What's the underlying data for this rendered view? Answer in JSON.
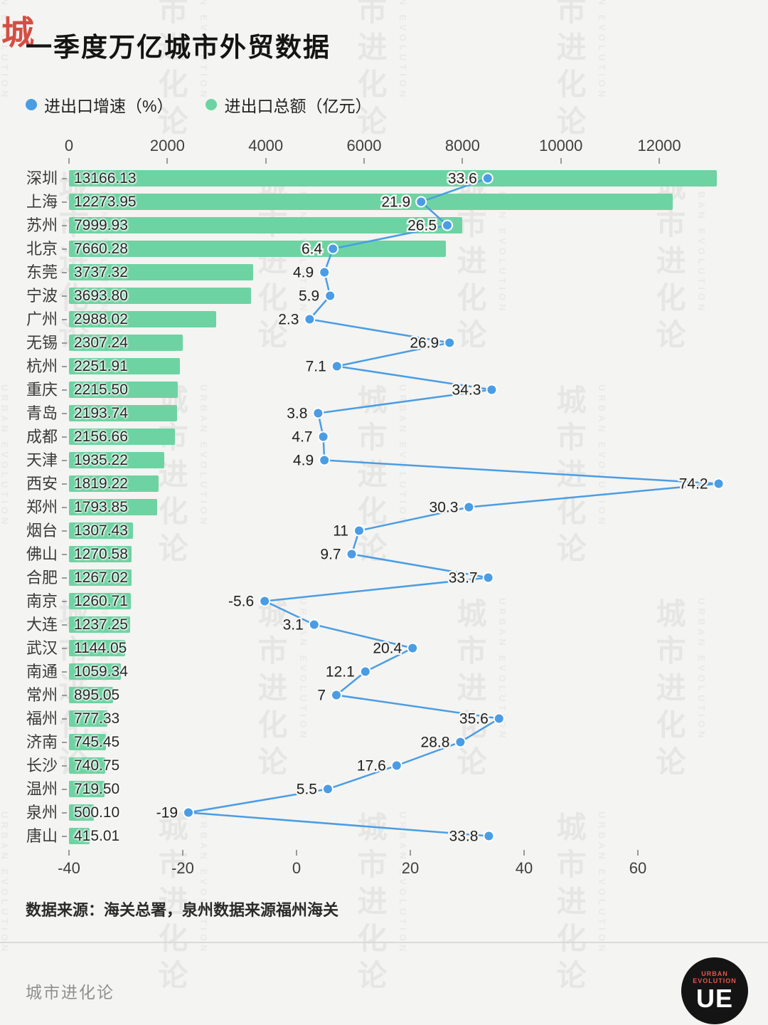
{
  "title": "一季度万亿城市外贸数据",
  "legend": {
    "items": [
      {
        "label": "进出口增速（%）",
        "color": "#4a9de4"
      },
      {
        "label": "进出口总额（亿元）",
        "color": "#6ed3a2"
      }
    ]
  },
  "watermark": {
    "cn": "城市进化论",
    "en": "URBAN EVOLUTION",
    "corner": "城"
  },
  "source_note": "数据来源：海关总署，泉州数据来源福州海关",
  "footer": {
    "brand": "城市进化论",
    "logo_main": "UE",
    "logo_sub": "URBAN EVOLUTION"
  },
  "chart_data": {
    "type": "bar+line",
    "title": "一季度万亿城市外贸数据",
    "categories": [
      "深圳",
      "上海",
      "苏州",
      "北京",
      "东莞",
      "宁波",
      "广州",
      "无锡",
      "杭州",
      "重庆",
      "青岛",
      "成都",
      "天津",
      "西安",
      "郑州",
      "烟台",
      "佛山",
      "合肥",
      "南京",
      "大连",
      "武汉",
      "南通",
      "常州",
      "福州",
      "济南",
      "长沙",
      "温州",
      "泉州",
      "唐山"
    ],
    "series": [
      {
        "name": "进出口总额（亿元）",
        "type": "bar",
        "axis": "top",
        "color": "#6ed3a2",
        "values": [
          13166.13,
          12273.95,
          7999.93,
          7660.28,
          3737.32,
          3693.8,
          2988.02,
          2307.24,
          2251.91,
          2215.5,
          2193.74,
          2156.66,
          1935.22,
          1819.22,
          1793.85,
          1307.43,
          1270.58,
          1267.02,
          1260.71,
          1237.25,
          1144.05,
          1059.34,
          895.05,
          777.33,
          745.45,
          740.75,
          719.5,
          500.1,
          415.01
        ]
      },
      {
        "name": "进出口增速（%）",
        "type": "line",
        "axis": "bottom",
        "color": "#4a9de4",
        "values": [
          33.6,
          21.9,
          26.5,
          6.4,
          4.9,
          5.9,
          2.3,
          26.9,
          7.1,
          34.3,
          3.8,
          4.7,
          4.9,
          74.2,
          30.3,
          11,
          9.7,
          33.7,
          -5.6,
          3.1,
          20.4,
          12.1,
          7,
          35.6,
          28.8,
          17.6,
          5.5,
          -19,
          33.8
        ]
      }
    ],
    "top_axis": {
      "ticks": [
        0,
        2000,
        4000,
        6000,
        8000,
        10000,
        12000
      ],
      "min": 0,
      "max": 13300
    },
    "bottom_axis": {
      "ticks": [
        -40,
        -20,
        0,
        20,
        40,
        60
      ],
      "min": -40,
      "max": 75
    },
    "legend_position": "top",
    "grid": false
  }
}
